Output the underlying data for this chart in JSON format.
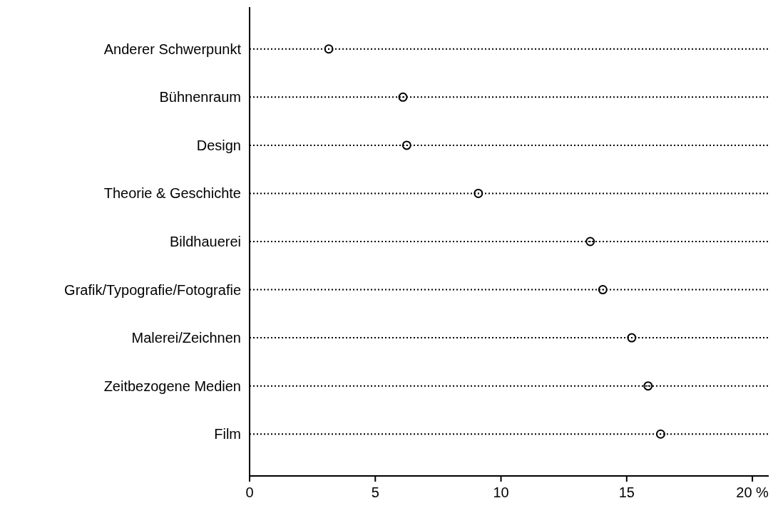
{
  "chart_data": {
    "type": "scatter",
    "orientation": "horizontal",
    "categories": [
      "Anderer Schwerpunkt",
      "Bühnenraum",
      "Design",
      "Theorie & Geschichte",
      "Bildhauerei",
      "Grafik/Typografie/Fotografie",
      "Malerei/Zeichnen",
      "Zeitbezogene Medien",
      "Film"
    ],
    "values": [
      3.15,
      6.1,
      6.25,
      9.1,
      13.55,
      14.05,
      15.2,
      15.85,
      16.35
    ],
    "color": "#000000",
    "marker": "circle",
    "grid": "y",
    "line_style": "dotted",
    "xlim": [
      0,
      20.65
    ],
    "xticks": [
      0,
      5,
      10,
      15,
      {
        "value": 20,
        "label": "20 %"
      }
    ]
  }
}
